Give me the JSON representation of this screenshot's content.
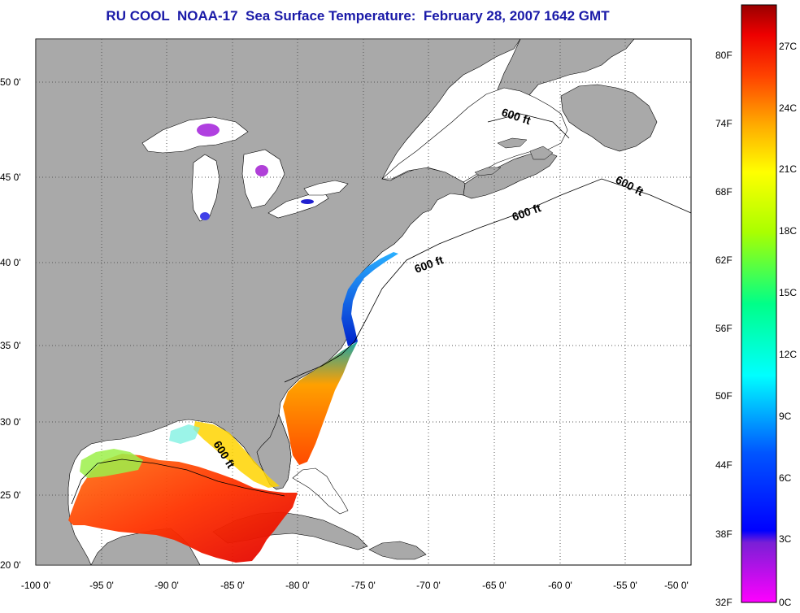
{
  "title": "RU COOL  NOAA-17  Sea Surface Temperature:  February 28, 2007 1642 GMT",
  "map": {
    "lat_labels": [
      "50 0'",
      "45 0'",
      "40 0'",
      "35 0'",
      "30 0'",
      "25 0'",
      "20 0'"
    ],
    "lon_labels": [
      "-100 0'",
      "-95 0'",
      "-90 0'",
      "-85 0'",
      "-80 0'",
      "-75 0'",
      "-70 0'",
      "-65 0'",
      "-60 0'",
      "-55 0'",
      "-50 0'"
    ],
    "isobath_label": "600 ft",
    "colors": {
      "land": "#a9a9a9",
      "ocean": "#ffffff",
      "coast": "#000000",
      "grid": "#555555"
    }
  },
  "colorbar": {
    "f_labels": [
      "80F",
      "74F",
      "68F",
      "62F",
      "56F",
      "50F",
      "44F",
      "38F",
      "32F"
    ],
    "c_labels": [
      "27C",
      "24C",
      "21C",
      "18C",
      "15C",
      "12C",
      "9C",
      "6C",
      "3C",
      "0C"
    ]
  }
}
